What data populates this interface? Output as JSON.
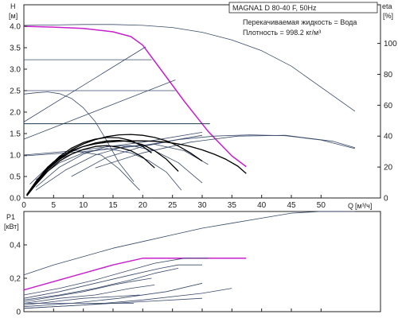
{
  "chart_data": [
    {
      "type": "line",
      "panel": "head-efficiency",
      "title": "MAGNA1 D 80-40 F, 50Hz",
      "legend_text": [
        "Перекачиваемая жидкость = Вода",
        "Плотность = 998.2 кг/м³"
      ],
      "legend_placement": "top-right",
      "ylabel": "H",
      "yunit": "[м]",
      "y2label": "eta",
      "y2unit": "[%]",
      "xlabel": "Q",
      "xunit": "[м³/ч]",
      "xlim": [
        0,
        60
      ],
      "ylim": [
        0,
        4.5
      ],
      "y2lim": [
        0,
        125
      ],
      "xticks": [
        0,
        5,
        10,
        15,
        20,
        25,
        30,
        35,
        40,
        45,
        50
      ],
      "yticks": [
        0.0,
        0.5,
        1.0,
        1.5,
        2.0,
        2.5,
        3.0,
        3.5,
        4.0
      ],
      "y2ticks": [
        0,
        20,
        40,
        60,
        80,
        100
      ],
      "grid": false,
      "colors": {
        "axis": "#222222",
        "curve": "#3a4a6b",
        "highlight": "#c81fcc",
        "bold": "#000000",
        "dark": "#1f3a4e"
      },
      "series": [
        {
          "style": "highlight",
          "x": [
            0,
            2,
            5,
            10,
            15,
            18,
            20,
            23,
            27,
            31,
            35,
            37.4
          ],
          "y": [
            4.0,
            3.99,
            3.98,
            3.95,
            3.87,
            3.76,
            3.56,
            3.0,
            2.25,
            1.55,
            0.98,
            0.73
          ]
        },
        {
          "style": "curve",
          "x": [
            0,
            5,
            10,
            15,
            20,
            25,
            30,
            35,
            40,
            45,
            50,
            55.7
          ],
          "y": [
            4.02,
            4.03,
            4.04,
            4.04,
            4.02,
            3.97,
            3.86,
            3.68,
            3.43,
            3.07,
            2.58,
            2.02
          ]
        },
        {
          "style": "curve",
          "x": [
            0,
            20.5
          ],
          "y": [
            1.77,
            3.52
          ]
        },
        {
          "style": "curve",
          "x": [
            0,
            25.5
          ],
          "y": [
            1.37,
            2.75
          ]
        },
        {
          "style": "curve",
          "x": [
            0,
            21.5
          ],
          "y": [
            3.22,
            3.22
          ]
        },
        {
          "style": "curve",
          "x": [
            0,
            25.5
          ],
          "y": [
            2.5,
            2.5
          ]
        },
        {
          "style": "dark",
          "x": [
            0,
            31.3
          ],
          "y": [
            1.73,
            1.73
          ]
        },
        {
          "style": "curve",
          "x": [
            0,
            2,
            4,
            6,
            8,
            10,
            12,
            14,
            16,
            18.5
          ],
          "y": [
            2.42,
            2.45,
            2.47,
            2.43,
            2.32,
            2.1,
            1.78,
            1.32,
            0.82,
            0.38
          ]
        },
        {
          "style": "curve",
          "x": [
            0,
            10,
            20,
            30
          ],
          "y": [
            1.0,
            1.12,
            1.3,
            1.53
          ]
        },
        {
          "style": "curve",
          "x": [
            0,
            10,
            20,
            30
          ],
          "y": [
            0.98,
            1.08,
            1.22,
            1.46
          ]
        },
        {
          "style": "curve",
          "x": [
            1,
            5,
            9,
            13,
            16,
            19.5
          ],
          "y": [
            0.32,
            0.85,
            1.08,
            1.0,
            0.68,
            0.18
          ]
        },
        {
          "style": "curve",
          "x": [
            2,
            6,
            10,
            14,
            18,
            21,
            24,
            26.5
          ],
          "y": [
            0.42,
            0.82,
            1.05,
            1.15,
            1.05,
            0.87,
            0.6,
            0.18
          ]
        },
        {
          "style": "curve",
          "x": [
            2,
            6,
            10,
            14,
            18,
            22,
            26,
            30
          ],
          "y": [
            0.25,
            0.72,
            1.02,
            1.2,
            1.22,
            1.1,
            0.82,
            0.35
          ]
        },
        {
          "style": "curve",
          "x": [
            2,
            7,
            12,
            17,
            22,
            27,
            31
          ],
          "y": [
            0.18,
            0.65,
            1.0,
            1.2,
            1.25,
            1.1,
            0.78
          ]
        },
        {
          "style": "curve",
          "x": [
            8,
            14,
            20,
            26,
            32,
            38,
            44,
            50,
            55.7
          ],
          "y": [
            0.5,
            0.95,
            1.2,
            1.36,
            1.44,
            1.47,
            1.45,
            1.35,
            1.15
          ]
        },
        {
          "style": "curve",
          "x": [
            12,
            20,
            28,
            36,
            44,
            52,
            55.7
          ],
          "y": [
            0.7,
            1.05,
            1.3,
            1.44,
            1.46,
            1.32,
            1.17
          ]
        },
        {
          "style": "bold",
          "x": [
            0.5,
            2,
            4,
            6,
            8,
            10,
            12,
            14,
            16,
            18,
            20,
            22,
            24,
            26,
            28,
            30,
            32,
            34,
            36,
            37.4
          ],
          "y": [
            0.08,
            0.38,
            0.72,
            0.95,
            1.1,
            1.2,
            1.26,
            1.3,
            1.32,
            1.33,
            1.33,
            1.32,
            1.3,
            1.26,
            1.2,
            1.12,
            1.02,
            0.9,
            0.74,
            0.57
          ]
        },
        {
          "style": "bold",
          "x": [
            0.5,
            2,
            4,
            6,
            8,
            10,
            12,
            14,
            16,
            18,
            20,
            22,
            24,
            26,
            28,
            30
          ],
          "y": [
            0.06,
            0.34,
            0.68,
            0.92,
            1.12,
            1.26,
            1.36,
            1.43,
            1.47,
            1.48,
            1.46,
            1.41,
            1.33,
            1.21,
            1.05,
            0.86
          ]
        },
        {
          "style": "bold",
          "x": [
            0.5,
            2,
            4,
            6,
            8,
            10,
            12,
            14,
            16,
            18,
            20,
            22,
            24,
            26
          ],
          "y": [
            0.06,
            0.33,
            0.66,
            0.9,
            1.08,
            1.2,
            1.28,
            1.33,
            1.34,
            1.31,
            1.24,
            1.1,
            0.9,
            0.62
          ]
        },
        {
          "style": "bold",
          "x": [
            0.5,
            2,
            4,
            6,
            8,
            10,
            12,
            14,
            16,
            18,
            20,
            22
          ],
          "y": [
            0.05,
            0.31,
            0.62,
            0.86,
            1.02,
            1.13,
            1.2,
            1.22,
            1.18,
            1.1,
            0.95,
            0.7
          ]
        },
        {
          "style": "bold",
          "x": [
            0.5,
            2,
            4,
            6,
            8,
            10,
            12,
            14,
            16,
            18,
            20,
            21.5
          ],
          "y": [
            0.06,
            0.35,
            0.7,
            0.97,
            1.16,
            1.29,
            1.37,
            1.41,
            1.4,
            1.34,
            1.2,
            1.05
          ]
        }
      ]
    },
    {
      "type": "line",
      "panel": "power",
      "ylabel": "P1",
      "yunit": "[кВт]",
      "xlim": [
        0,
        60
      ],
      "ylim": [
        0,
        0.6
      ],
      "yticks": [
        0,
        0.2,
        0.4
      ],
      "ytick_labels": [
        "0",
        "0,2",
        "0,4"
      ],
      "grid": false,
      "series": [
        {
          "style": "curve",
          "x": [
            0,
            5,
            10,
            15,
            20,
            25,
            30,
            35,
            40,
            45,
            50,
            55.7
          ],
          "y": [
            0.22,
            0.28,
            0.33,
            0.38,
            0.42,
            0.46,
            0.5,
            0.53,
            0.56,
            0.59,
            0.6,
            0.6
          ]
        },
        {
          "style": "highlight",
          "x": [
            0,
            5,
            10,
            15,
            20,
            37.4
          ],
          "y": [
            0.13,
            0.18,
            0.23,
            0.28,
            0.32,
            0.32
          ]
        },
        {
          "style": "curve",
          "x": [
            0,
            6,
            12,
            18,
            22,
            27,
            31
          ],
          "y": [
            0.1,
            0.14,
            0.19,
            0.25,
            0.29,
            0.32,
            0.32
          ]
        },
        {
          "style": "curve",
          "x": [
            0,
            6,
            12,
            18,
            23,
            26,
            30
          ],
          "y": [
            0.08,
            0.12,
            0.17,
            0.22,
            0.26,
            0.28,
            0.28
          ]
        },
        {
          "style": "curve",
          "x": [
            0,
            6,
            12,
            18,
            22,
            26
          ],
          "y": [
            0.07,
            0.1,
            0.14,
            0.19,
            0.23,
            0.26
          ]
        },
        {
          "style": "curve",
          "x": [
            0,
            5,
            10,
            15,
            18,
            21.5
          ],
          "y": [
            0.06,
            0.09,
            0.12,
            0.16,
            0.18,
            0.2
          ]
        },
        {
          "style": "curve",
          "x": [
            0,
            6,
            12,
            18,
            22
          ],
          "y": [
            0.05,
            0.08,
            0.1,
            0.14,
            0.16
          ]
        },
        {
          "style": "curve",
          "x": [
            0,
            8,
            16,
            24,
            30
          ],
          "y": [
            0.03,
            0.05,
            0.08,
            0.12,
            0.17
          ]
        },
        {
          "style": "curve",
          "x": [
            0,
            10,
            20,
            30,
            35
          ],
          "y": [
            0.02,
            0.04,
            0.07,
            0.11,
            0.14
          ]
        },
        {
          "style": "curve",
          "x": [
            0,
            5,
            10,
            15,
            19.5
          ],
          "y": [
            0.04,
            0.06,
            0.08,
            0.09,
            0.1
          ]
        },
        {
          "style": "curve",
          "x": [
            0,
            18.5
          ],
          "y": [
            0.05,
            0.05
          ]
        },
        {
          "style": "curve",
          "x": [
            0,
            10,
            20,
            30
          ],
          "y": [
            0.02,
            0.04,
            0.06,
            0.08
          ]
        }
      ]
    }
  ]
}
